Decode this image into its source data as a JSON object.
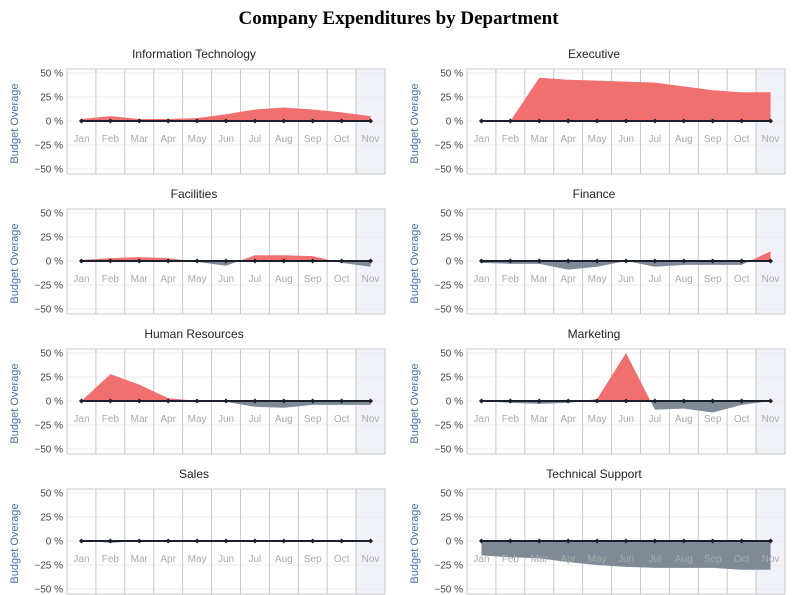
{
  "title": "Company Expenditures by Department",
  "colors": {
    "over": "#f07070",
    "under": "#7f8a96",
    "line": "#1a1f2b",
    "grid": "#c8c8c8",
    "highlight": "#f1f1fa"
  },
  "chart_data": [
    {
      "type": "area",
      "title": "Information Technology",
      "ylabel": "Budget Overage",
      "categories": [
        "Jan",
        "Feb",
        "Mar",
        "Apr",
        "May",
        "Jun",
        "Jul",
        "Aug",
        "Sep",
        "Oct",
        "Nov"
      ],
      "y_ticks": [
        "50 %",
        "25 %",
        "0 %",
        "−25 %",
        "−50 %"
      ],
      "ylim": [
        -50,
        50
      ],
      "values": [
        2,
        5,
        2,
        2,
        3,
        7,
        12,
        14,
        12,
        9,
        5
      ],
      "highlight_category": "Nov"
    },
    {
      "type": "area",
      "title": "Executive",
      "ylabel": "Budget Overage",
      "categories": [
        "Jan",
        "Feb",
        "Mar",
        "Apr",
        "May",
        "Jun",
        "Jul",
        "Aug",
        "Sep",
        "Oct",
        "Nov"
      ],
      "y_ticks": [
        "50 %",
        "25 %",
        "0 %",
        "−25 %",
        "−50 %"
      ],
      "ylim": [
        -50,
        50
      ],
      "values": [
        0,
        0,
        45,
        43,
        42,
        41,
        40,
        36,
        32,
        30,
        30
      ],
      "highlight_category": "Nov"
    },
    {
      "type": "area",
      "title": "Facilities",
      "ylabel": "Budget Overage",
      "categories": [
        "Jan",
        "Feb",
        "Mar",
        "Apr",
        "May",
        "Jun",
        "Jul",
        "Aug",
        "Sep",
        "Oct",
        "Nov"
      ],
      "y_ticks": [
        "50 %",
        "25 %",
        "0 %",
        "−25 %",
        "−50 %"
      ],
      "ylim": [
        -50,
        50
      ],
      "values": [
        1,
        3,
        4,
        3,
        -1,
        -5,
        6,
        6,
        5,
        -2,
        -6
      ],
      "highlight_category": "Nov"
    },
    {
      "type": "area",
      "title": "Finance",
      "ylabel": "Budget Overage",
      "categories": [
        "Jan",
        "Feb",
        "Mar",
        "Apr",
        "May",
        "Jun",
        "Jul",
        "Aug",
        "Sep",
        "Oct",
        "Nov"
      ],
      "y_ticks": [
        "50 %",
        "25 %",
        "0 %",
        "−25 %",
        "−50 %"
      ],
      "ylim": [
        -50,
        50
      ],
      "values": [
        -2,
        -3,
        -3,
        -9,
        -6,
        0,
        -6,
        -4,
        -4,
        -4,
        10
      ],
      "highlight_category": "Nov"
    },
    {
      "type": "area",
      "title": "Human Resources",
      "ylabel": "Budget Overage",
      "categories": [
        "Jan",
        "Feb",
        "Mar",
        "Apr",
        "May",
        "Jun",
        "Jul",
        "Aug",
        "Sep",
        "Oct",
        "Nov"
      ],
      "y_ticks": [
        "50 %",
        "25 %",
        "0 %",
        "−25 %",
        "−50 %"
      ],
      "ylim": [
        -50,
        50
      ],
      "values": [
        0,
        28,
        17,
        3,
        0,
        -1,
        -6,
        -7,
        -4,
        -4,
        -4
      ],
      "highlight_category": "Nov"
    },
    {
      "type": "area",
      "title": "Marketing",
      "ylabel": "Budget Overage",
      "categories": [
        "Jan",
        "Feb",
        "Mar",
        "Apr",
        "May",
        "Jun",
        "Jul",
        "Aug",
        "Sep",
        "Oct",
        "Nov"
      ],
      "y_ticks": [
        "50 %",
        "25 %",
        "0 %",
        "−25 %",
        "−50 %"
      ],
      "ylim": [
        -50,
        50
      ],
      "values": [
        0,
        -2,
        -3,
        -2,
        2,
        50,
        -9,
        -8,
        -12,
        -4,
        0
      ],
      "highlight_category": "Nov"
    },
    {
      "type": "area",
      "title": "Sales",
      "ylabel": "Budget Overage",
      "categories": [
        "Jan",
        "Feb",
        "Mar",
        "Apr",
        "May",
        "Jun",
        "Jul",
        "Aug",
        "Sep",
        "Oct",
        "Nov"
      ],
      "y_ticks": [
        "50 %",
        "25 %",
        "0 %",
        "−25 %",
        "−50 %"
      ],
      "ylim": [
        -50,
        50
      ],
      "values": [
        1,
        -2,
        0,
        0,
        0,
        0,
        0,
        0,
        0,
        0,
        0
      ],
      "highlight_category": "Nov"
    },
    {
      "type": "area",
      "title": "Technical Support",
      "ylabel": "Budget Overage",
      "categories": [
        "Jan",
        "Feb",
        "Mar",
        "Apr",
        "May",
        "Jun",
        "Jul",
        "Aug",
        "Sep",
        "Oct",
        "Nov"
      ],
      "y_ticks": [
        "50 %",
        "25 %",
        "0 %",
        "−25 %",
        "−50 %"
      ],
      "ylim": [
        -50,
        50
      ],
      "values": [
        -15,
        -17,
        -18,
        -22,
        -25,
        -27,
        -28,
        -28,
        -28,
        -30,
        -30
      ],
      "highlight_category": "Nov"
    }
  ]
}
